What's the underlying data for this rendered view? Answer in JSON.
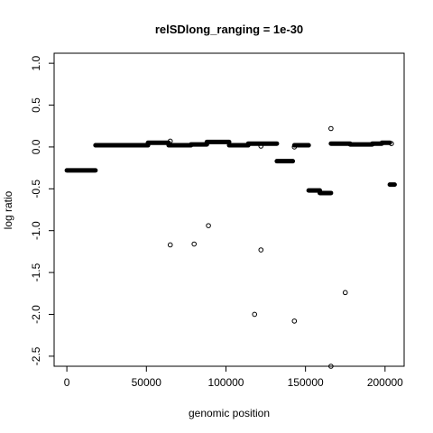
{
  "chart_data": {
    "type": "scatter",
    "title": "relSDlong_ranging =  1e-30",
    "xlabel": "genomic position",
    "ylabel": "log ratio",
    "xlim": [
      -8000,
      212000
    ],
    "ylim": [
      -2.62,
      1.12
    ],
    "x_ticks": [
      {
        "value": 0,
        "label": "0"
      },
      {
        "value": 50000,
        "label": "50000"
      },
      {
        "value": 100000,
        "label": "100000"
      },
      {
        "value": 150000,
        "label": "150000"
      },
      {
        "value": 200000,
        "label": "200000"
      }
    ],
    "y_ticks": [
      {
        "value": -2.5,
        "label": "-2.5"
      },
      {
        "value": -2.0,
        "label": "-2.0"
      },
      {
        "value": -1.5,
        "label": "-1.5"
      },
      {
        "value": -1.0,
        "label": "-1.0"
      },
      {
        "value": -0.5,
        "label": "-0.5"
      },
      {
        "value": 0.0,
        "label": "0.0"
      },
      {
        "value": 0.5,
        "label": "0.5"
      },
      {
        "value": 1.0,
        "label": "1.0"
      }
    ],
    "grid": false,
    "dense_runs": [
      {
        "x_start": 0,
        "x_end": 18000,
        "y": -0.28
      },
      {
        "x_start": 18000,
        "x_end": 51000,
        "y": 0.02
      },
      {
        "x_start": 51000,
        "x_end": 64000,
        "y": 0.05
      },
      {
        "x_start": 64000,
        "x_end": 78000,
        "y": 0.02
      },
      {
        "x_start": 78000,
        "x_end": 88000,
        "y": 0.03
      },
      {
        "x_start": 88000,
        "x_end": 102000,
        "y": 0.06
      },
      {
        "x_start": 102000,
        "x_end": 114000,
        "y": 0.02
      },
      {
        "x_start": 114000,
        "x_end": 132000,
        "y": 0.04
      },
      {
        "x_start": 132000,
        "x_end": 142000,
        "y": -0.17
      },
      {
        "x_start": 143000,
        "x_end": 152000,
        "y": 0.02
      },
      {
        "x_start": 152000,
        "x_end": 159000,
        "y": -0.52
      },
      {
        "x_start": 159000,
        "x_end": 166000,
        "y": -0.55
      },
      {
        "x_start": 166000,
        "x_end": 178000,
        "y": 0.04
      },
      {
        "x_start": 178000,
        "x_end": 192000,
        "y": 0.03
      },
      {
        "x_start": 192000,
        "x_end": 198000,
        "y": 0.04
      },
      {
        "x_start": 198000,
        "x_end": 203000,
        "y": 0.05
      },
      {
        "x_start": 203000,
        "x_end": 206000,
        "y": -0.45
      }
    ],
    "points": [
      {
        "x": 65000,
        "y": 0.07
      },
      {
        "x": 65000,
        "y": -1.17
      },
      {
        "x": 80000,
        "y": -1.16
      },
      {
        "x": 89000,
        "y": -0.94
      },
      {
        "x": 118000,
        "y": -2.0
      },
      {
        "x": 122000,
        "y": 0.01
      },
      {
        "x": 122000,
        "y": -1.23
      },
      {
        "x": 143000,
        "y": -2.08
      },
      {
        "x": 143000,
        "y": 0.0
      },
      {
        "x": 166000,
        "y": 0.22
      },
      {
        "x": 166000,
        "y": -2.62
      },
      {
        "x": 175000,
        "y": -1.74
      },
      {
        "x": 204000,
        "y": 0.04
      }
    ]
  }
}
